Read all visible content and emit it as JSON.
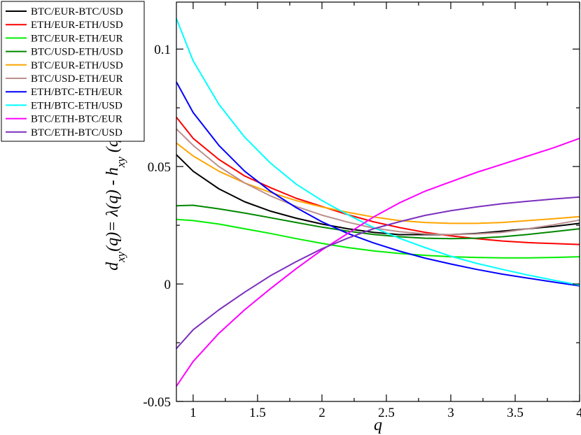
{
  "chart_data": {
    "type": "line",
    "title": "",
    "xlabel": "q",
    "ylabel": {
      "main": "d",
      "sub1": "xy",
      "mid": "(q)= λ(q) - h",
      "sub2": "xy",
      "end": " (q)"
    },
    "xlim": [
      0.87,
      4.0
    ],
    "ylim": [
      -0.05,
      0.12
    ],
    "x_ticks": [
      1,
      1.5,
      2,
      2.5,
      3,
      3.5,
      4
    ],
    "x_tick_labels": [
      "1",
      "1.5",
      "2",
      "2.5",
      "3",
      "3.5",
      "4"
    ],
    "y_ticks": [
      -0.05,
      0,
      0.05,
      0.1
    ],
    "y_tick_labels": [
      "-0.05",
      "0",
      "0.05",
      "0.1"
    ],
    "legend_position": "top-left",
    "grid": false,
    "x": [
      0.87,
      1.0,
      1.2,
      1.4,
      1.6,
      1.8,
      2.0,
      2.2,
      2.4,
      2.6,
      2.8,
      3.0,
      3.2,
      3.4,
      3.6,
      3.8,
      4.0
    ],
    "series": [
      {
        "name": "BTC/EUR-BTC/USD",
        "color": "#000000",
        "values": [
          0.055,
          0.048,
          0.0405,
          0.035,
          0.031,
          0.028,
          0.0255,
          0.0235,
          0.022,
          0.021,
          0.021,
          0.021,
          0.0215,
          0.0225,
          0.0235,
          0.0245,
          0.0258
        ]
      },
      {
        "name": "ETH/EUR-ETH/USD",
        "color": "#ff0000",
        "values": [
          0.071,
          0.062,
          0.053,
          0.046,
          0.041,
          0.0365,
          0.033,
          0.0295,
          0.0265,
          0.024,
          0.022,
          0.0205,
          0.0193,
          0.0183,
          0.0176,
          0.0172,
          0.0168
        ]
      },
      {
        "name": "BTC/EUR-ETH/EUR",
        "color": "#00ee00",
        "values": [
          0.0275,
          0.027,
          0.0255,
          0.0235,
          0.0215,
          0.0193,
          0.0173,
          0.0155,
          0.0141,
          0.013,
          0.0122,
          0.0116,
          0.0113,
          0.0111,
          0.0111,
          0.0113,
          0.0116
        ]
      },
      {
        "name": "BTC/USD-ETH/USD",
        "color": "#008800",
        "values": [
          0.0333,
          0.0335,
          0.032,
          0.0302,
          0.0282,
          0.0262,
          0.0242,
          0.0225,
          0.0211,
          0.0201,
          0.0195,
          0.0193,
          0.0195,
          0.0201,
          0.0211,
          0.0223,
          0.0235
        ]
      },
      {
        "name": "BTC/EUR-ETH/USD",
        "color": "#ffa500",
        "values": [
          0.06,
          0.0545,
          0.048,
          0.043,
          0.039,
          0.0355,
          0.0328,
          0.0305,
          0.0285,
          0.027,
          0.0262,
          0.0258,
          0.0258,
          0.0262,
          0.027,
          0.0278,
          0.0287
        ]
      },
      {
        "name": "BTC/USD-ETH/EUR",
        "color": "#bc8f8f",
        "values": [
          0.066,
          0.059,
          0.05,
          0.043,
          0.0375,
          0.033,
          0.0293,
          0.0263,
          0.0238,
          0.0223,
          0.0213,
          0.021,
          0.0213,
          0.022,
          0.0235,
          0.0252,
          0.0272
        ]
      },
      {
        "name": "ETH/BTC-ETH/EUR",
        "color": "#0000ff",
        "values": [
          0.086,
          0.073,
          0.059,
          0.048,
          0.0395,
          0.0325,
          0.0265,
          0.0215,
          0.0175,
          0.014,
          0.011,
          0.0085,
          0.0062,
          0.0042,
          0.0025,
          0.0008,
          -0.0008
        ]
      },
      {
        "name": "ETH/BTC-ETH/USD",
        "color": "#00ffff",
        "values": [
          0.113,
          0.095,
          0.0765,
          0.0625,
          0.0515,
          0.0425,
          0.0355,
          0.0295,
          0.024,
          0.0195,
          0.0155,
          0.0118,
          0.0088,
          0.0062,
          0.0038,
          0.0016,
          -0.0005
        ]
      },
      {
        "name": "BTC/ETH-BTC/EUR",
        "color": "#ff00ff",
        "values": [
          -0.0435,
          -0.033,
          -0.021,
          -0.011,
          -0.002,
          0.0065,
          0.0145,
          0.0215,
          0.0285,
          0.0345,
          0.0395,
          0.0435,
          0.0475,
          0.051,
          0.0545,
          0.058,
          0.062
        ]
      },
      {
        "name": "BTC/ETH-BTC/USD",
        "color": "#7b2fbe",
        "values": [
          -0.0275,
          -0.0195,
          -0.011,
          -0.0035,
          0.0035,
          0.0095,
          0.015,
          0.0195,
          0.0235,
          0.0265,
          0.0292,
          0.0312,
          0.0328,
          0.0342,
          0.0352,
          0.0362,
          0.037
        ]
      }
    ]
  }
}
